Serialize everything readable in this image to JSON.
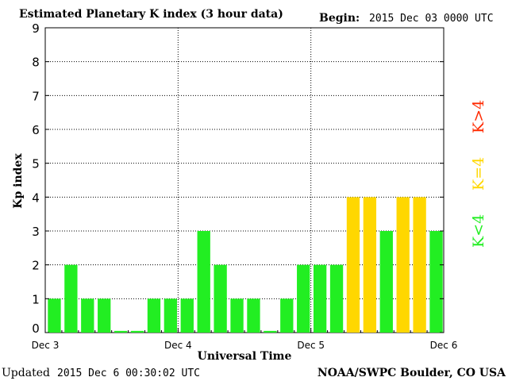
{
  "header": {
    "title": "Estimated Planetary K index (3 hour data)",
    "begin_label": "Begin:",
    "begin_value": "2015 Dec 03 0000 UTC"
  },
  "footer": {
    "updated_label": "Updated",
    "updated_value": "2015 Dec  6 00:30:02 UTC",
    "source": "NOAA/SWPC Boulder, CO USA"
  },
  "legend": {
    "items": [
      {
        "label": "K<4",
        "color": "#22ee22"
      },
      {
        "label": "K=4",
        "color": "#ffd700"
      },
      {
        "label": "K>4",
        "color": "#ff2a00"
      }
    ]
  },
  "chart_data": {
    "type": "bar",
    "title": "Estimated Planetary K index (3 hour data)",
    "xlabel": "Universal Time",
    "ylabel": "Kp index",
    "ylim": [
      0,
      9
    ],
    "yticks": [
      0,
      1,
      2,
      3,
      4,
      5,
      6,
      7,
      8,
      9
    ],
    "x_tick_labels": [
      "Dec 3",
      "Dec 4",
      "Dec 5",
      "Dec 6"
    ],
    "grid": true,
    "values": [
      1,
      2,
      1,
      1,
      0.05,
      0.05,
      1,
      1,
      1,
      3,
      2,
      1,
      1,
      0.05,
      1,
      2,
      2,
      2,
      4,
      4,
      3,
      4,
      4,
      3
    ],
    "colors": {
      "below4": "#22ee22",
      "equal4": "#ffd700",
      "above4": "#ff2a00"
    }
  }
}
